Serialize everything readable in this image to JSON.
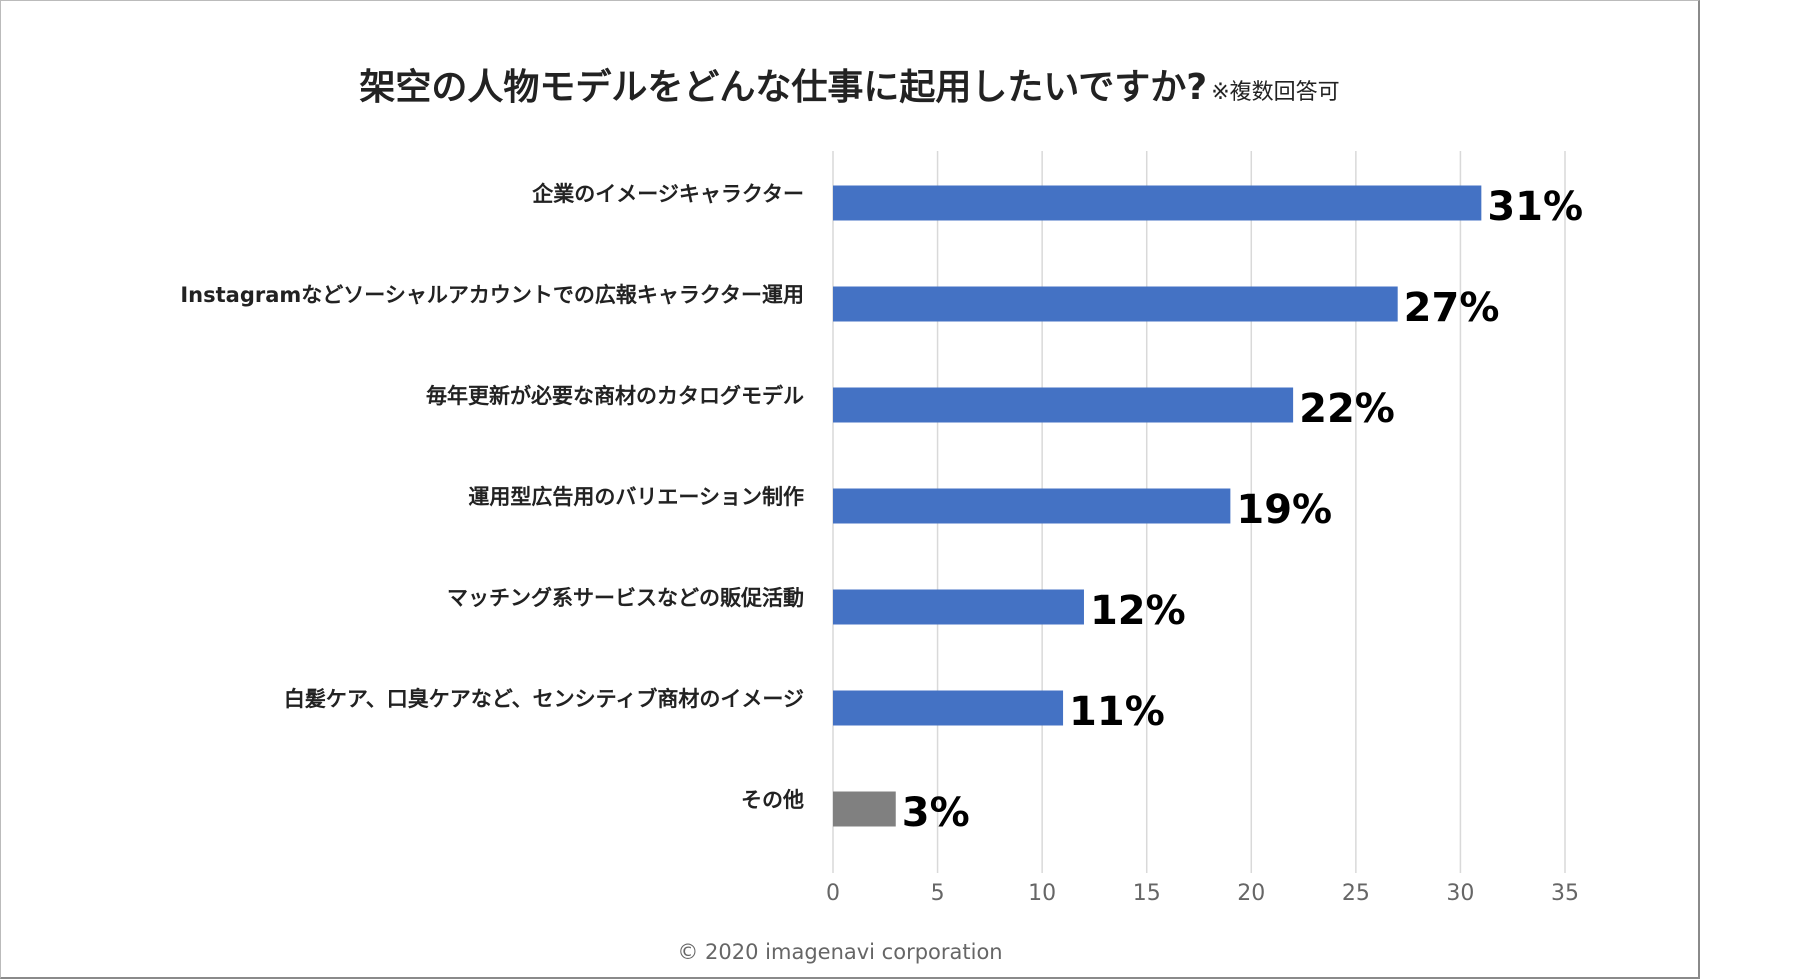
{
  "chart_data": {
    "type": "bar",
    "orientation": "horizontal",
    "title": "架空の人物モデルをどんな仕事に起用したいですか?",
    "subtitle": "※複数回答可",
    "categories": [
      "企業のイメージキャラクター",
      "Instagramなどソーシャルアカウントでの広報キャラクター運用",
      "毎年更新が必要な商材のカタログモデル",
      "運用型広告用のバリエーション制作",
      "マッチング系サービスなどの販促活動",
      "白髪ケア、口臭ケアなど、センシティブ商材のイメージ",
      "その他"
    ],
    "values": [
      31,
      27,
      22,
      19,
      12,
      11,
      3
    ],
    "data_labels": [
      "31%",
      "27%",
      "22%",
      "19%",
      "12%",
      "11%",
      "3%"
    ],
    "bar_colors": [
      "#4472C4",
      "#4472C4",
      "#4472C4",
      "#4472C4",
      "#4472C4",
      "#4472C4",
      "#808080"
    ],
    "xlim": [
      0,
      35
    ],
    "xticks": [
      "0",
      "5",
      "10",
      "15",
      "20",
      "25",
      "30",
      "35"
    ],
    "grid": "vertical",
    "xlabel": "",
    "ylabel": ""
  },
  "footer": "© 2020 imagenavi corporation"
}
